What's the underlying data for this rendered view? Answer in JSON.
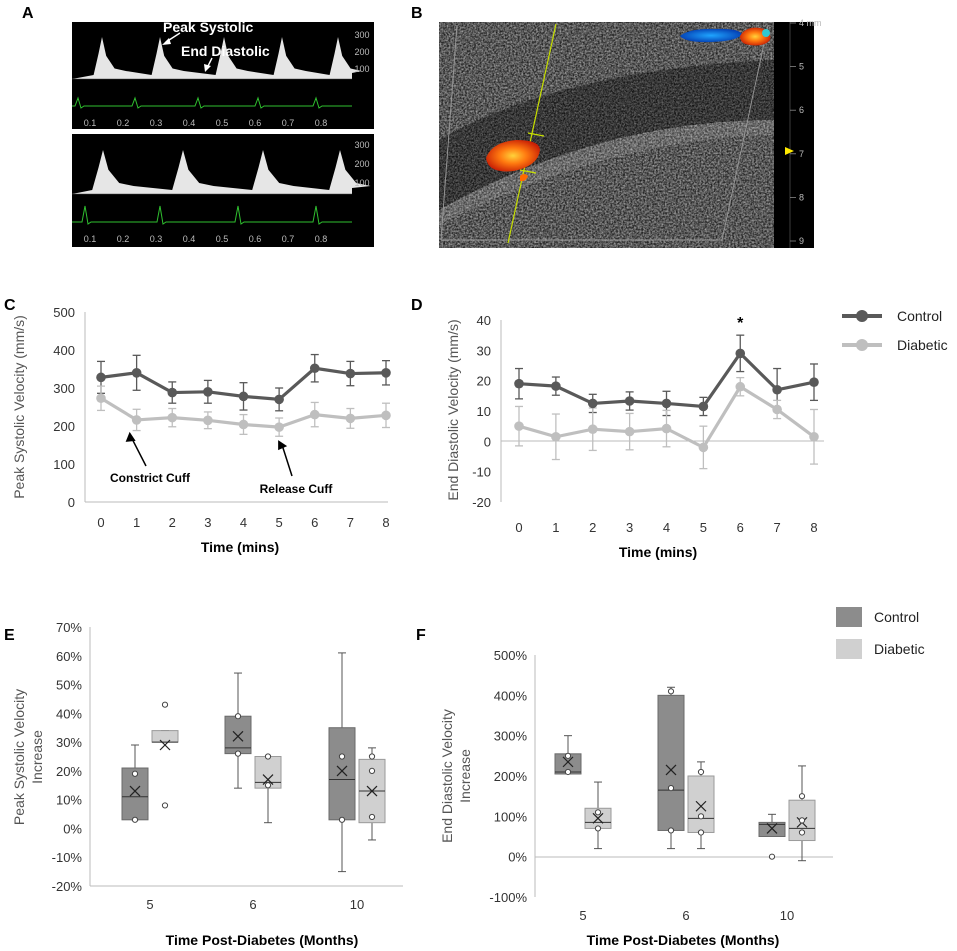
{
  "panel_labels": {
    "a": "A",
    "b": "B",
    "c": "C",
    "d": "D",
    "e": "E",
    "f": "F"
  },
  "colors": {
    "control": "#595959",
    "diabetic": "#bfbfbf",
    "control_box": "#8c8c8c",
    "diabetic_box": "#d0d0d0",
    "ecg": "#2fbf2f",
    "doppler": "#e6e6e6"
  },
  "panel_a": {
    "annotations": {
      "peak": "Peak Systolic",
      "end": "End Diastolic"
    },
    "top_scale": [
      "100",
      "200",
      "300"
    ],
    "bottom_scale": [
      "100",
      "200",
      "300"
    ],
    "top_time": [
      "0.1",
      "0.2",
      "0.3",
      "0.4",
      "0.5",
      "0.6",
      "0.7",
      "0.8"
    ],
    "bottom_time": [
      "0.1",
      "0.2",
      "0.3",
      "0.4",
      "0.5",
      "0.6",
      "0.7",
      "0.8"
    ]
  },
  "panel_b": {
    "depth_ticks": [
      "4 mm",
      "5",
      "6",
      "7",
      "8",
      "9"
    ]
  },
  "legend_cd": {
    "control": "Control",
    "diabetic": "Diabetic"
  },
  "legend_ef": {
    "control": "Control",
    "diabetic": "Diabetic"
  },
  "chart_data": [
    {
      "id": "C",
      "type": "line",
      "xlabel": "Time (mins)",
      "ylabel": "Peak Systolic Velocity (mm/s)",
      "ylim": [
        0,
        500
      ],
      "yticks": [
        0,
        100,
        200,
        300,
        400,
        500
      ],
      "x": [
        0,
        1,
        2,
        3,
        4,
        5,
        6,
        7,
        8
      ],
      "series": [
        {
          "name": "Control",
          "values": [
            328,
            340,
            288,
            290,
            278,
            270,
            352,
            338,
            340
          ],
          "err": [
            42,
            46,
            28,
            30,
            36,
            30,
            36,
            32,
            32
          ]
        },
        {
          "name": "Diabetic",
          "values": [
            273,
            216,
            222,
            215,
            204,
            197,
            230,
            220,
            228
          ],
          "err": [
            32,
            28,
            24,
            22,
            26,
            24,
            32,
            26,
            32
          ]
        }
      ],
      "annotations": [
        {
          "text": "Constrict Cuff",
          "x": 1,
          "y": 216
        },
        {
          "text": "Release Cuff",
          "x": 5,
          "y": 197
        }
      ]
    },
    {
      "id": "D",
      "type": "line",
      "xlabel": "Time (mins)",
      "ylabel": "End Diastolic Velocity (mm/s)",
      "ylim": [
        -20,
        40
      ],
      "yticks": [
        -20,
        -10,
        0,
        10,
        20,
        30,
        40
      ],
      "x": [
        0,
        1,
        2,
        3,
        4,
        5,
        6,
        7,
        8
      ],
      "series": [
        {
          "name": "Control",
          "values": [
            19,
            18.2,
            12.5,
            13.3,
            12.5,
            11.5,
            29,
            17,
            19.5
          ],
          "err": [
            5,
            3,
            3,
            3,
            4,
            3,
            6,
            7,
            6
          ]
        },
        {
          "name": "Diabetic",
          "values": [
            5,
            1.5,
            4,
            3.2,
            4.2,
            -2,
            18,
            10.5,
            1.5
          ],
          "err": [
            6.5,
            7.5,
            7,
            6,
            6,
            7,
            3,
            3,
            9
          ]
        }
      ],
      "significance": {
        "x": 6,
        "label": "*"
      }
    },
    {
      "id": "E",
      "type": "box",
      "xlabel": "Time Post-Diabetes (Months)",
      "ylabel": "Peak Systolic Velocity Increase",
      "ylim": [
        -20,
        70
      ],
      "yticks": [
        "-20%",
        "-10%",
        "0%",
        "10%",
        "20%",
        "30%",
        "40%",
        "50%",
        "60%",
        "70%"
      ],
      "categories": [
        "5",
        "6",
        "10"
      ],
      "series": [
        {
          "name": "Control",
          "boxes": [
            {
              "min": 3,
              "q1": 3,
              "median": 11,
              "q3": 21,
              "max": 29,
              "mean": 13,
              "points": [
                3,
                19
              ]
            },
            {
              "min": 14,
              "q1": 26,
              "median": 28,
              "q3": 39,
              "max": 54,
              "mean": 32,
              "points": [
                26,
                39
              ]
            },
            {
              "min": -15,
              "q1": 3,
              "median": 17,
              "q3": 35,
              "max": 61,
              "mean": 20,
              "points": [
                3,
                25
              ]
            }
          ]
        },
        {
          "name": "Diabetic",
          "boxes": [
            {
              "min": 30,
              "q1": 30,
              "median": 30,
              "q3": 34,
              "max": 34,
              "mean": 29,
              "points": [
                8,
                43
              ]
            },
            {
              "min": 2,
              "q1": 14,
              "median": 16,
              "q3": 25,
              "max": 25,
              "mean": 17,
              "points": [
                15,
                25
              ]
            },
            {
              "min": -4,
              "q1": 2,
              "median": 13,
              "q3": 24,
              "max": 28,
              "mean": 13,
              "points": [
                4,
                20,
                25
              ]
            }
          ]
        }
      ]
    },
    {
      "id": "F",
      "type": "box",
      "xlabel": "Time Post-Diabetes (Months)",
      "ylabel": "End Diastolic Velocity Increase",
      "ylim": [
        -100,
        500
      ],
      "yticks": [
        "-100%",
        "0%",
        "100%",
        "200%",
        "300%",
        "400%",
        "500%"
      ],
      "categories": [
        "5",
        "6",
        "10"
      ],
      "series": [
        {
          "name": "Control",
          "boxes": [
            {
              "min": 205,
              "q1": 205,
              "median": 210,
              "q3": 255,
              "max": 300,
              "mean": 235,
              "points": [
                210,
                250
              ]
            },
            {
              "min": 20,
              "q1": 65,
              "median": 165,
              "q3": 400,
              "max": 420,
              "mean": 215,
              "points": [
                65,
                170,
                410
              ]
            },
            {
              "min": 50,
              "q1": 50,
              "median": 80,
              "q3": 85,
              "max": 105,
              "mean": 70,
              "points": [
                0
              ]
            }
          ]
        },
        {
          "name": "Diabetic",
          "boxes": [
            {
              "min": 20,
              "q1": 70,
              "median": 85,
              "q3": 120,
              "max": 185,
              "mean": 95,
              "points": [
                70,
                110
              ]
            },
            {
              "min": 20,
              "q1": 60,
              "median": 95,
              "q3": 200,
              "max": 235,
              "mean": 125,
              "points": [
                60,
                100,
                210
              ]
            },
            {
              "min": -10,
              "q1": 40,
              "median": 70,
              "q3": 140,
              "max": 225,
              "mean": 85,
              "points": [
                60,
                90,
                150
              ]
            }
          ]
        }
      ]
    }
  ]
}
